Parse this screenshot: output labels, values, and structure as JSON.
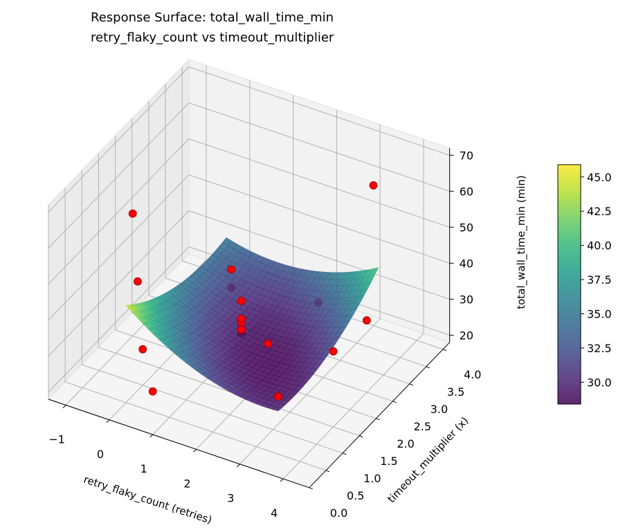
{
  "chart_data": {
    "type": "surface",
    "title": "Response Surface: total_wall_time_min",
    "subtitle": "retry_flaky_count vs timeout_multiplier",
    "xlabel": "retry_flaky_count (retries)",
    "ylabel": "timeout_multiplier (x)",
    "zlabel": "total_wall_time_min (min)",
    "xlim": [
      -1.4,
      4.6
    ],
    "ylim": [
      0,
      4.2
    ],
    "zlim": [
      18,
      72
    ],
    "x_ticks": [
      "−1",
      "0",
      "1",
      "2",
      "3",
      "4"
    ],
    "y_ticks": [
      "0.0",
      "0.5",
      "1.0",
      "1.5",
      "2.0",
      "2.5",
      "3.0",
      "3.5",
      "4.0"
    ],
    "z_ticks": [
      "20",
      "30",
      "40",
      "50",
      "60",
      "70"
    ],
    "colormap": "viridis",
    "colorbar": {
      "range": [
        28.4,
        45.9
      ],
      "ticks": [
        "30.0",
        "32.5",
        "35.0",
        "37.5",
        "40.0",
        "42.5",
        "45.0"
      ]
    },
    "surface_domain": {
      "x": [
        0,
        3.5
      ],
      "y": [
        0.5,
        3.5
      ]
    },
    "points_color": "#ff0000",
    "points": [
      {
        "x": -1,
        "y": 2,
        "z": 52
      },
      {
        "x": -0.5,
        "y": 1.5,
        "z": 40
      },
      {
        "x": 0.5,
        "y": 3,
        "z": 33
      },
      {
        "x": 0.5,
        "y": 3,
        "z": 28
      },
      {
        "x": 1.5,
        "y": 2,
        "z": 38
      },
      {
        "x": 2.5,
        "y": 3,
        "z": 32
      },
      {
        "x": 1.5,
        "y": 2,
        "z": 29
      },
      {
        "x": 1.5,
        "y": 2,
        "z": 30
      },
      {
        "x": 1.5,
        "y": 2,
        "z": 32
      },
      {
        "x": 1.5,
        "y": 2,
        "z": 33
      },
      {
        "x": 2.5,
        "y": 1.5,
        "z": 35
      },
      {
        "x": 0,
        "y": 1,
        "z": 28
      },
      {
        "x": 1,
        "y": 0,
        "z": 30
      },
      {
        "x": 3.5,
        "y": 0.5,
        "z": 34
      },
      {
        "x": 4,
        "y": 1.5,
        "z": 39
      },
      {
        "x": 4,
        "y": 2.5,
        "z": 38
      },
      {
        "x": 3,
        "y": 4,
        "z": 57
      }
    ],
    "grid": true
  }
}
